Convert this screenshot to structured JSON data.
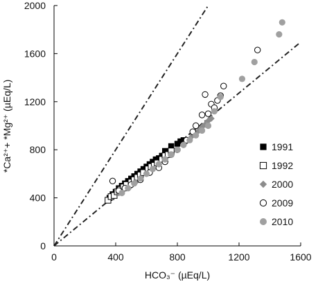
{
  "chart_data": {
    "type": "scatter",
    "title": "",
    "xlabel": "HCO₃⁻ (µEq/L)",
    "ylabel": "*Ca²⁺+ *Mg²⁺ (µEq/L)",
    "xlim": [
      0,
      1600
    ],
    "ylim": [
      0,
      2000
    ],
    "xticks": [
      "0",
      "400",
      "800",
      "1200",
      "1600"
    ],
    "yticks": [
      "0",
      "400",
      "800",
      "1200",
      "1600",
      "2000"
    ],
    "grid": false,
    "legend_position": "right",
    "reference_lines": [
      {
        "style": "dash-dot",
        "slope": 2.0
      },
      {
        "style": "dash-dot",
        "slope": 1.06
      }
    ],
    "series": [
      {
        "name": "1991",
        "marker": "filled-square",
        "color": "#000000",
        "points": [
          [
            360,
            400
          ],
          [
            380,
            430
          ],
          [
            400,
            450
          ],
          [
            420,
            480
          ],
          [
            440,
            500
          ],
          [
            460,
            520
          ],
          [
            480,
            540
          ],
          [
            500,
            560
          ],
          [
            520,
            580
          ],
          [
            540,
            600
          ],
          [
            560,
            620
          ],
          [
            580,
            640
          ],
          [
            600,
            660
          ],
          [
            620,
            680
          ],
          [
            640,
            700
          ],
          [
            660,
            720
          ],
          [
            680,
            730
          ],
          [
            700,
            750
          ],
          [
            720,
            790
          ],
          [
            760,
            830
          ],
          [
            800,
            850
          ],
          [
            820,
            870
          ],
          [
            840,
            880
          ]
        ]
      },
      {
        "name": "1992",
        "marker": "open-square",
        "color": "#000000",
        "points": [
          [
            350,
            380
          ],
          [
            370,
            410
          ],
          [
            390,
            420
          ],
          [
            410,
            450
          ],
          [
            430,
            470
          ],
          [
            450,
            490
          ],
          [
            470,
            510
          ],
          [
            500,
            530
          ],
          [
            520,
            550
          ],
          [
            540,
            570
          ],
          [
            560,
            590
          ],
          [
            580,
            610
          ],
          [
            610,
            640
          ],
          [
            630,
            660
          ],
          [
            650,
            670
          ],
          [
            670,
            690
          ],
          [
            700,
            720
          ],
          [
            720,
            750
          ],
          [
            740,
            760
          ],
          [
            760,
            790
          ]
        ]
      },
      {
        "name": "2000",
        "marker": "diamond",
        "color": "#8c8c8c",
        "points": [
          [
            420,
            440
          ],
          [
            440,
            460
          ],
          [
            470,
            480
          ],
          [
            500,
            500
          ],
          [
            530,
            530
          ],
          [
            560,
            560
          ],
          [
            600,
            600
          ],
          [
            640,
            640
          ],
          [
            680,
            680
          ],
          [
            720,
            720
          ],
          [
            760,
            760
          ],
          [
            800,
            800
          ],
          [
            840,
            840
          ],
          [
            860,
            870
          ],
          [
            880,
            890
          ],
          [
            900,
            920
          ],
          [
            920,
            940
          ],
          [
            940,
            960
          ],
          [
            960,
            990
          ],
          [
            980,
            1010
          ],
          [
            1000,
            1040
          ],
          [
            1020,
            1060
          ]
        ]
      },
      {
        "name": "2009",
        "marker": "open-circle",
        "color": "#000000",
        "points": [
          [
            380,
            540
          ],
          [
            420,
            460
          ],
          [
            460,
            480
          ],
          [
            500,
            510
          ],
          [
            560,
            550
          ],
          [
            620,
            610
          ],
          [
            680,
            650
          ],
          [
            720,
            700
          ],
          [
            760,
            760
          ],
          [
            800,
            800
          ],
          [
            860,
            880
          ],
          [
            900,
            950
          ],
          [
            920,
            1000
          ],
          [
            960,
            1090
          ],
          [
            980,
            1260
          ],
          [
            1000,
            1100
          ],
          [
            1020,
            1180
          ],
          [
            1040,
            1150
          ],
          [
            1060,
            1210
          ],
          [
            1080,
            1250
          ],
          [
            1100,
            1330
          ],
          [
            1320,
            1630
          ]
        ]
      },
      {
        "name": "2010",
        "marker": "filled-circle",
        "color": "#a0a0a0",
        "points": [
          [
            440,
            440
          ],
          [
            480,
            480
          ],
          [
            520,
            520
          ],
          [
            560,
            560
          ],
          [
            600,
            600
          ],
          [
            640,
            640
          ],
          [
            680,
            680
          ],
          [
            720,
            720
          ],
          [
            760,
            760
          ],
          [
            800,
            800
          ],
          [
            840,
            840
          ],
          [
            880,
            880
          ],
          [
            920,
            920
          ],
          [
            960,
            960
          ],
          [
            1000,
            1000
          ],
          [
            1040,
            1120
          ],
          [
            1080,
            1240
          ],
          [
            1220,
            1390
          ],
          [
            1300,
            1530
          ],
          [
            1460,
            1760
          ],
          [
            1480,
            1860
          ]
        ]
      }
    ]
  }
}
